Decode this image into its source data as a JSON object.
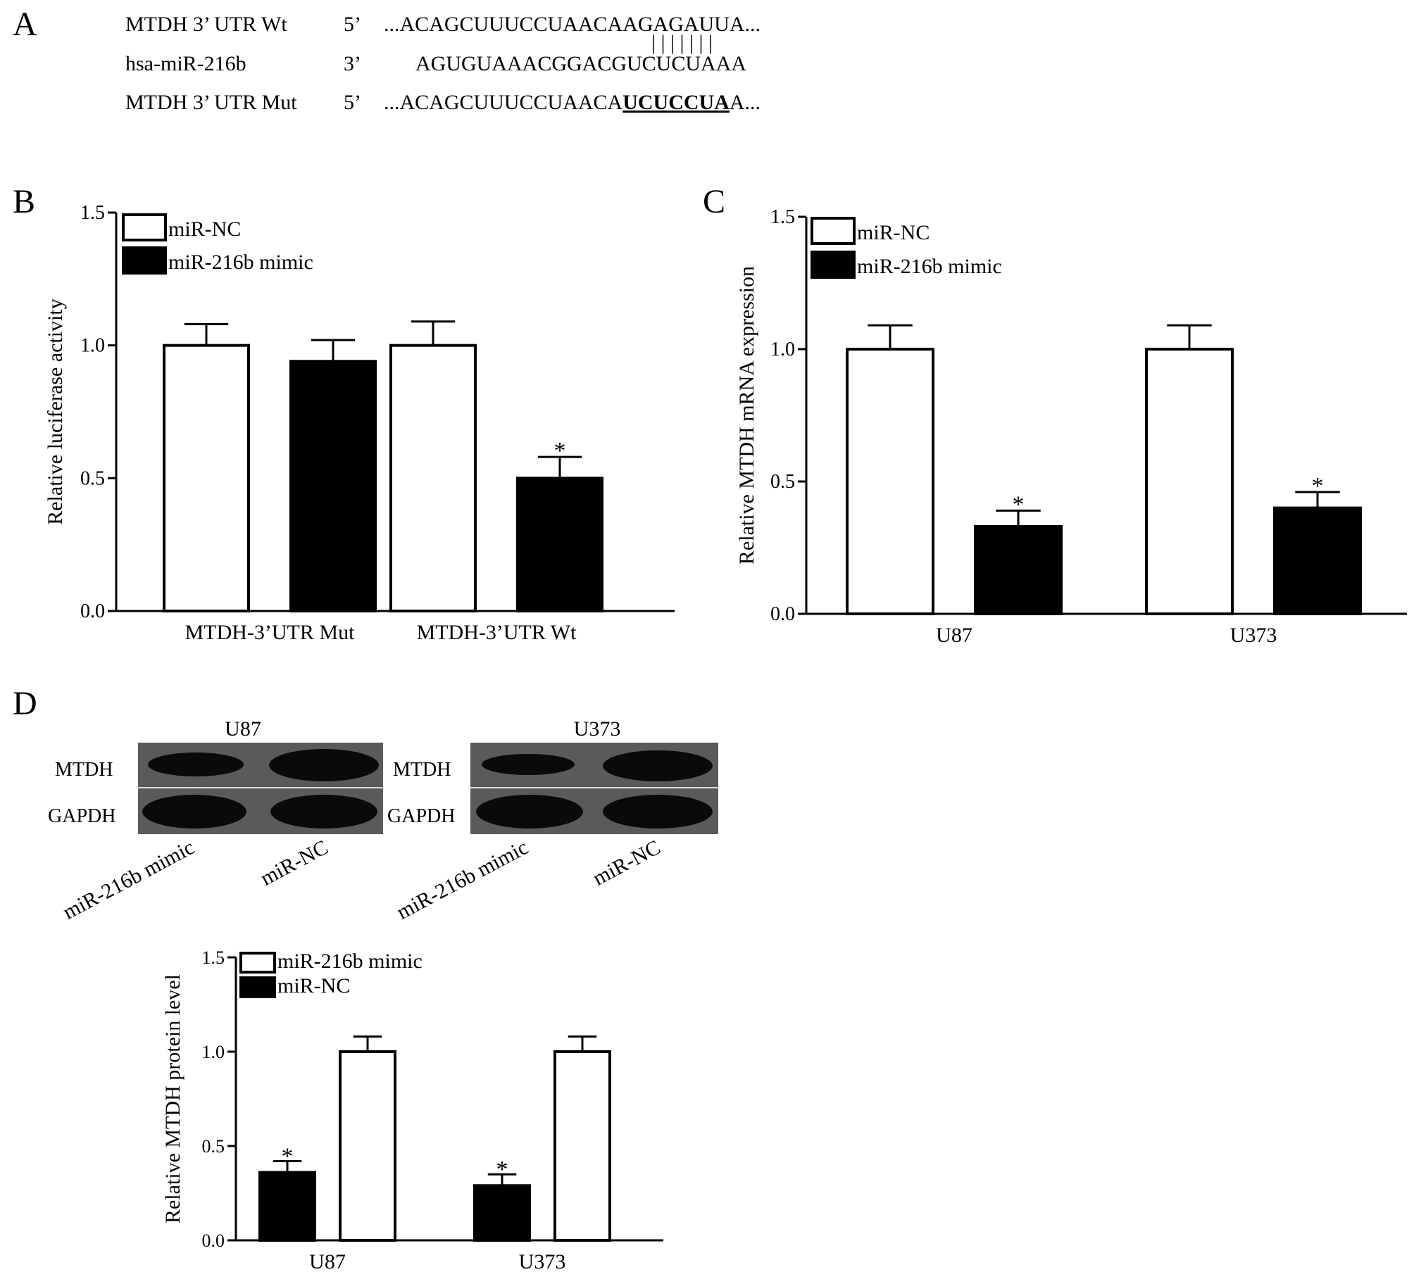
{
  "panel_a": {
    "letter": "A",
    "rows": [
      {
        "name": "MTDH 3’ UTR Wt",
        "end": "5’",
        "seq": "...ACAGCUUUCCUAACAAGAGAUUA..."
      },
      {
        "name": "hsa-miR-216b",
        "end": "3’",
        "seq": "AGUGUAAACGGACGUCUCUAAA"
      },
      {
        "name": "MTDH 3’ UTR Mut",
        "end": "5’",
        "seq_pre": "...ACAGCUUUCCUAACA",
        "seq_mut": "UCUCCUA",
        "seq_post": "A..."
      }
    ],
    "pairing_marks": "| | | | | | |"
  },
  "panel_d": {
    "letter": "D",
    "blots": [
      {
        "cell": "U87",
        "row_labels": [
          "MTDH",
          "GAPDH"
        ],
        "lane_labels": [
          "miR-216b mimic",
          "miR-NC"
        ]
      },
      {
        "cell": "U373",
        "row_labels": [
          "MTDH",
          "GAPDH"
        ],
        "lane_labels": [
          "miR-216b mimic",
          "miR-NC"
        ]
      }
    ]
  },
  "chart_data": [
    {
      "panel": "B",
      "type": "bar",
      "categories": [
        "MTDH-3’UTR Mut",
        "MTDH-3’UTR Wt"
      ],
      "series": [
        {
          "name": "miR-NC",
          "values": [
            1.0,
            1.0
          ],
          "errors": [
            0.08,
            0.09
          ],
          "fill": "#ffffff",
          "significant": [
            false,
            false
          ]
        },
        {
          "name": "miR-216b mimic",
          "values": [
            0.94,
            0.5
          ],
          "errors": [
            0.08,
            0.08
          ],
          "fill": "#000000",
          "significant": [
            false,
            true
          ]
        }
      ],
      "xlabel": "",
      "ylabel": "Relative luciferase activity",
      "ylim": [
        0,
        1.5
      ],
      "yticks": [
        "0.0",
        "0.5",
        "1.0",
        "1.5"
      ],
      "legend": "top-left",
      "significance_mark": "*"
    },
    {
      "panel": "C",
      "type": "bar",
      "categories": [
        "U87",
        "U373"
      ],
      "series": [
        {
          "name": "miR-NC",
          "values": [
            1.0,
            1.0
          ],
          "errors": [
            0.09,
            0.09
          ],
          "fill": "#ffffff",
          "significant": [
            false,
            false
          ]
        },
        {
          "name": "miR-216b mimic",
          "values": [
            0.33,
            0.4
          ],
          "errors": [
            0.06,
            0.06
          ],
          "fill": "#000000",
          "significant": [
            true,
            true
          ]
        }
      ],
      "xlabel": "",
      "ylabel": "Relative MTDH mRNA expression",
      "ylim": [
        0,
        1.5
      ],
      "yticks": [
        "0.0",
        "0.5",
        "1.0",
        "1.5"
      ],
      "legend": "top-left",
      "significance_mark": "*"
    },
    {
      "panel": "D",
      "type": "bar",
      "categories": [
        "U87",
        "U373"
      ],
      "series": [
        {
          "name": "miR-NC",
          "values": [
            0.36,
            0.29
          ],
          "errors": [
            0.06,
            0.06
          ],
          "fill": "#000000",
          "significant": [
            true,
            true
          ]
        },
        {
          "name": "miR-216b mimic",
          "values": [
            1.0,
            1.0
          ],
          "errors": [
            0.08,
            0.08
          ],
          "fill": "#ffffff",
          "significant": [
            false,
            false
          ]
        }
      ],
      "legend_order": [
        "miR-216b mimic",
        "miR-NC"
      ],
      "xlabel": "",
      "ylabel": "Relative MTDH protein level",
      "ylim": [
        0,
        1.5
      ],
      "yticks": [
        "0.0",
        "0.5",
        "1.0",
        "1.5"
      ],
      "legend": "top-left",
      "significance_mark": "*"
    }
  ]
}
